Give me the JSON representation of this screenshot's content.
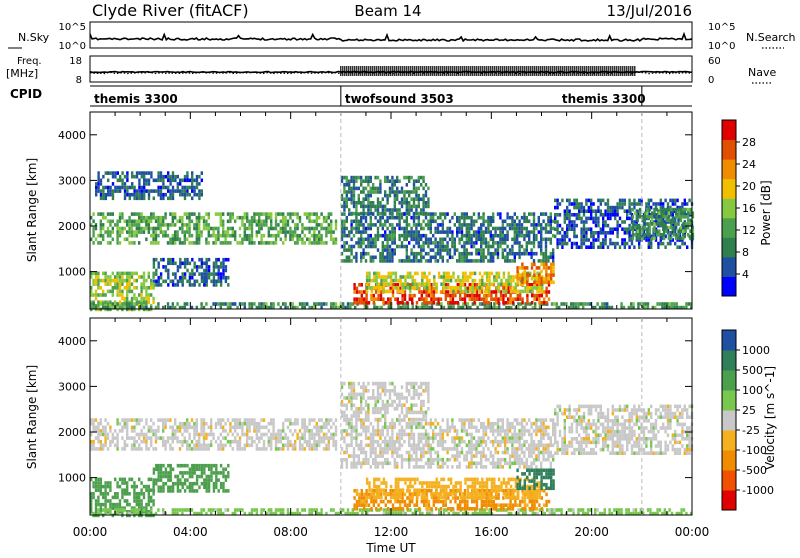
{
  "header": {
    "station": "Clyde River (fitACF)",
    "beam": "Beam 14",
    "date": "13/Jul/2016"
  },
  "nsky_panel": {
    "left_label": "N.Sky",
    "right_label": "N.Search",
    "left_ticks": [
      "10^5",
      "10^0"
    ],
    "right_ticks": [
      "10^5",
      "10^0"
    ]
  },
  "freq_panel": {
    "left_label_line1": "Freq.",
    "left_label_line2": "[MHz]",
    "left_ticks": [
      "18",
      "8"
    ],
    "right_label": "Nave",
    "right_ticks": [
      "60",
      "0"
    ]
  },
  "cpid_panel": {
    "label": "CPID",
    "segments": [
      {
        "name": "themis 3300",
        "start_hour": 0,
        "end_hour": 10
      },
      {
        "name": "twofsound 3503",
        "start_hour": 10,
        "end_hour": 22
      },
      {
        "name": "themis 3300",
        "start_hour": 22,
        "end_hour": 24
      }
    ]
  },
  "colors": {
    "power_scale": [
      "#0000ff",
      "#1f4fa0",
      "#2f7f4f",
      "#4c9f4c",
      "#86c840",
      "#f0c000",
      "#f08c00",
      "#e05000",
      "#e00000"
    ],
    "velocity_scale": [
      "#e00000",
      "#f05000",
      "#f08c00",
      "#f5b020",
      "#c8c8c8",
      "#78c850",
      "#4c9f4c",
      "#2f7f5a",
      "#1f4fa0"
    ],
    "guide_line": "#bbbbbb"
  },
  "chart_data": [
    {
      "type": "heatmap",
      "name": "power",
      "ylabel": "Slant Range [km]",
      "colorbar_label": "Power [dB]",
      "colorbar_ticks": [
        "4",
        "8",
        "12",
        "16",
        "20",
        "24",
        "28"
      ],
      "clim": [
        0,
        30
      ],
      "x_ticks": [
        "00:00",
        "04:00",
        "08:00",
        "12:00",
        "16:00",
        "20:00",
        "00:00"
      ],
      "xlim_hours": [
        0,
        24
      ],
      "y_ticks": [
        "1000",
        "2000",
        "3000",
        "4000"
      ],
      "ylim_km": [
        180,
        4500
      ],
      "regions": [
        {
          "t0": 0.0,
          "t1": 9.8,
          "r0": 1650,
          "r1": 2300,
          "level": 12
        },
        {
          "t0": 0.2,
          "t1": 4.5,
          "r0": 2600,
          "r1": 3200,
          "level": 6
        },
        {
          "t0": 2.5,
          "t1": 5.5,
          "r0": 700,
          "r1": 1300,
          "level": 6
        },
        {
          "t0": 0.0,
          "t1": 2.5,
          "r0": 180,
          "r1": 1000,
          "level": 14
        },
        {
          "t0": 0.0,
          "t1": 24.0,
          "r0": 180,
          "r1": 330,
          "level": 10
        },
        {
          "t0": 10.0,
          "t1": 13.5,
          "r0": 2300,
          "r1": 3100,
          "level": 8
        },
        {
          "t0": 10.0,
          "t1": 18.5,
          "r0": 1200,
          "r1": 2300,
          "level": 7
        },
        {
          "t0": 10.5,
          "t1": 18.3,
          "r0": 300,
          "r1": 750,
          "level": 26
        },
        {
          "t0": 11.0,
          "t1": 18.0,
          "r0": 600,
          "r1": 1000,
          "level": 16
        },
        {
          "t0": 17.0,
          "t1": 18.5,
          "r0": 800,
          "r1": 1200,
          "level": 22
        },
        {
          "t0": 18.5,
          "t1": 24.0,
          "r0": 1500,
          "r1": 2600,
          "level": 5
        },
        {
          "t0": 21.5,
          "t1": 24.0,
          "r0": 1700,
          "r1": 2400,
          "level": 10
        }
      ]
    },
    {
      "type": "heatmap",
      "name": "velocity",
      "ylabel": "Slant Range [km]",
      "xlabel": "Time UT",
      "colorbar_label": "Velocity [m s^-1]",
      "colorbar_ticks": [
        "1000",
        "500",
        "100",
        "25",
        "-25",
        "-100",
        "-500",
        "-1000"
      ],
      "x_ticks": [
        "00:00",
        "04:00",
        "08:00",
        "12:00",
        "16:00",
        "20:00",
        "00:00"
      ],
      "xlim_hours": [
        0,
        24
      ],
      "y_ticks": [
        "1000",
        "2000",
        "3000",
        "4000"
      ],
      "ylim_km": [
        180,
        4500
      ],
      "regions": [
        {
          "t0": 0.0,
          "t1": 9.8,
          "r0": 1650,
          "r1": 2300,
          "velocity": 0
        },
        {
          "t0": 2.5,
          "t1": 5.5,
          "r0": 700,
          "r1": 1300,
          "velocity": 200
        },
        {
          "t0": 0.0,
          "t1": 2.5,
          "r0": 180,
          "r1": 1000,
          "velocity": 300
        },
        {
          "t0": 0.0,
          "t1": 24.0,
          "r0": 180,
          "r1": 330,
          "velocity": 50
        },
        {
          "t0": 10.0,
          "t1": 13.5,
          "r0": 2300,
          "r1": 3100,
          "velocity": 0
        },
        {
          "t0": 10.0,
          "t1": 18.5,
          "r0": 1200,
          "r1": 2300,
          "velocity": 0
        },
        {
          "t0": 10.5,
          "t1": 18.3,
          "r0": 300,
          "r1": 750,
          "velocity": -120
        },
        {
          "t0": 11.0,
          "t1": 18.0,
          "r0": 600,
          "r1": 1000,
          "velocity": -60
        },
        {
          "t0": 17.0,
          "t1": 18.5,
          "r0": 800,
          "r1": 1200,
          "velocity": 600
        },
        {
          "t0": 18.5,
          "t1": 24.0,
          "r0": 1500,
          "r1": 2600,
          "velocity": 0
        }
      ]
    }
  ]
}
